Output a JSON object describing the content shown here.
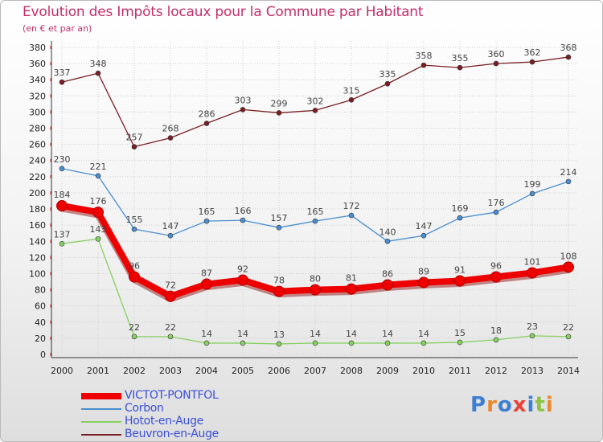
{
  "title": "Evolution des Impôts locaux pour la Commune par Habitant",
  "subtitle": "(en € et par an)",
  "logo": {
    "letters": [
      "P",
      "r",
      "o",
      "x",
      "i",
      "t",
      "i"
    ],
    "colors": [
      "#3f7fd2",
      "#e9892f",
      "#3f7fd2",
      "#e8413a",
      "#3f7fd2",
      "#8ac440",
      "#e9892f"
    ]
  },
  "chart_data": {
    "type": "line",
    "title": "Evolution des Impôts locaux pour la Commune par Habitant",
    "ylabel": "(en € et par an)",
    "xlabel": "",
    "ylim": [
      0,
      380
    ],
    "ytick_step": 20,
    "grid": true,
    "legend_position": "bottom-left",
    "x": [
      "2000",
      "2001",
      "2002",
      "2003",
      "2004",
      "2005",
      "2006",
      "2007",
      "2008",
      "2009",
      "2010",
      "2011",
      "2012",
      "2013",
      "2014"
    ],
    "series": [
      {
        "name": "VICTOT-PONTFOL",
        "color": "#ee0000",
        "emphasis": true,
        "values": [
          184,
          176,
          96,
          72,
          87,
          92,
          78,
          80,
          81,
          86,
          89,
          91,
          96,
          101,
          108
        ]
      },
      {
        "name": "Corbon",
        "color": "#4a8fd0",
        "emphasis": false,
        "values": [
          230,
          221,
          155,
          147,
          165,
          166,
          157,
          165,
          172,
          140,
          147,
          169,
          176,
          199,
          214
        ]
      },
      {
        "name": "Hotot-en-Auge",
        "color": "#86d160",
        "emphasis": false,
        "values": [
          137,
          143,
          22,
          22,
          14,
          14,
          13,
          14,
          14,
          14,
          14,
          15,
          18,
          23,
          22
        ]
      },
      {
        "name": "Beuvron-en-Auge",
        "color": "#7a1e22",
        "emphasis": false,
        "values": [
          337,
          348,
          257,
          268,
          286,
          303,
          299,
          302,
          315,
          335,
          358,
          355,
          360,
          362,
          368
        ]
      }
    ]
  }
}
